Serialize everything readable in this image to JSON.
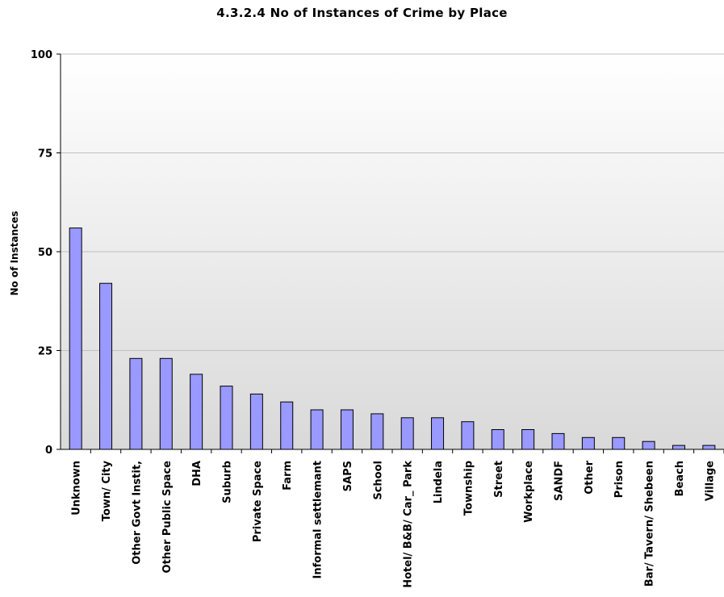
{
  "chart_data": {
    "type": "bar",
    "title": "4.3.2.4 No of Instances of Crime by Place",
    "xlabel": "",
    "ylabel": "No of Instances",
    "ylim": [
      0,
      100
    ],
    "yticks": [
      0,
      25,
      50,
      75,
      100
    ],
    "grid": true,
    "categories": [
      "Unknown",
      "Town/ City",
      "Other Govt Instit,",
      "Other Public Space",
      "DHA",
      "Suburb",
      "Private Space",
      "Farm",
      "Informal settlemant",
      "SAPS",
      "School",
      "Hotel/ B&B/ Car_ Park",
      "Lindela",
      "Township",
      "Street",
      "Workplace",
      "SANDF",
      "Other",
      "Prison",
      "Bar/ Tavern/ Shebeen",
      "Beach",
      "Village"
    ],
    "values": [
      56,
      42,
      23,
      23,
      19,
      16,
      14,
      12,
      10,
      10,
      9,
      8,
      8,
      7,
      5,
      5,
      4,
      3,
      3,
      2,
      1,
      1
    ],
    "colors": {
      "bar_fill": "#9999ff",
      "bar_stroke": "#000000",
      "gridline": "#c0c0c0",
      "background_top": "#ffffff",
      "background_bottom": "#d9d9d9"
    }
  }
}
